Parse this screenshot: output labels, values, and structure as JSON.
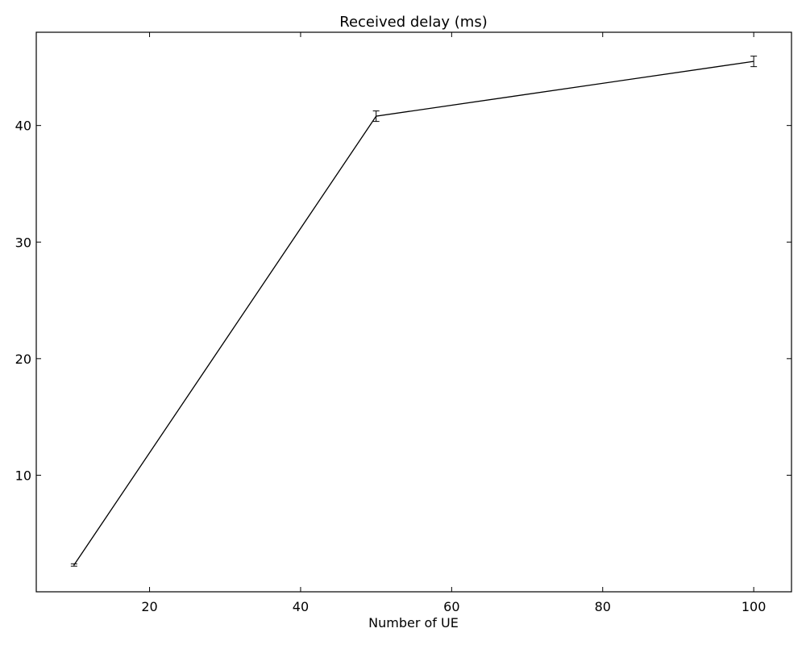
{
  "chart_data": {
    "type": "line",
    "title": "Received delay (ms)",
    "xlabel": "Number of UE",
    "ylabel": "",
    "xlim": [
      5,
      105
    ],
    "ylim": [
      0,
      48
    ],
    "xticks": [
      20,
      40,
      60,
      80,
      100
    ],
    "yticks": [
      10,
      20,
      30,
      40
    ],
    "grid": false,
    "legend": "none",
    "series": [
      {
        "x": [
          10,
          50,
          100
        ],
        "y": [
          2.3,
          40.8,
          45.5
        ],
        "yerr": [
          0.1,
          0.45,
          0.45
        ],
        "color": "#000000"
      }
    ]
  }
}
